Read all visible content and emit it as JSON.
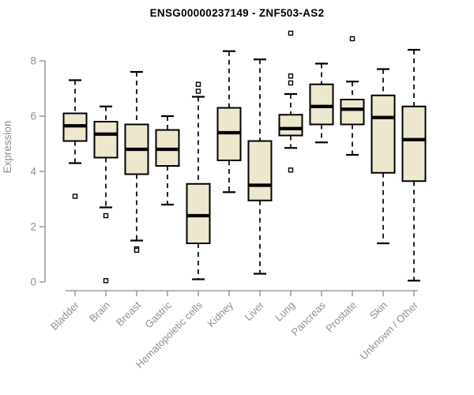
{
  "chart_data": {
    "type": "boxplot",
    "title": "ENSG00000237149 - ZNF503-AS2",
    "ylabel": "Expression",
    "xlabel": "",
    "ylim": [
      0,
      8
    ],
    "yticks": [
      0,
      2,
      4,
      6,
      8
    ],
    "grid": false,
    "legend": "none",
    "categories": [
      "Bladder",
      "Brain",
      "Breast",
      "Gastric",
      "Hematopoietic cells",
      "Kidney",
      "Liver",
      "Lung",
      "Pancreas",
      "Prostate",
      "Skin",
      "Unknown / Other"
    ],
    "boxes": [
      {
        "category": "Bladder",
        "whisker_low": 4.3,
        "q1": 5.1,
        "median": 5.65,
        "q3": 6.1,
        "whisker_high": 7.3,
        "outliers": [
          3.1
        ]
      },
      {
        "category": "Brain",
        "whisker_low": 2.7,
        "q1": 4.5,
        "median": 5.35,
        "q3": 5.8,
        "whisker_high": 6.35,
        "outliers": [
          2.4,
          0.05
        ]
      },
      {
        "category": "Breast",
        "whisker_low": 1.5,
        "q1": 3.9,
        "median": 4.8,
        "q3": 5.7,
        "whisker_high": 7.6,
        "outliers": [
          1.2,
          1.15
        ]
      },
      {
        "category": "Gastric",
        "whisker_low": 2.8,
        "q1": 4.2,
        "median": 4.8,
        "q3": 5.5,
        "whisker_high": 6.0,
        "outliers": []
      },
      {
        "category": "Hematopoietic cells",
        "whisker_low": 0.1,
        "q1": 1.4,
        "median": 2.4,
        "q3": 3.55,
        "whisker_high": 6.7,
        "outliers": [
          6.9,
          7.15
        ]
      },
      {
        "category": "Kidney",
        "whisker_low": 3.25,
        "q1": 4.4,
        "median": 5.4,
        "q3": 6.3,
        "whisker_high": 8.35,
        "outliers": []
      },
      {
        "category": "Liver",
        "whisker_low": 0.3,
        "q1": 2.95,
        "median": 3.5,
        "q3": 5.1,
        "whisker_high": 8.05,
        "outliers": []
      },
      {
        "category": "Lung",
        "whisker_low": 4.85,
        "q1": 5.3,
        "median": 5.55,
        "q3": 6.05,
        "whisker_high": 6.8,
        "outliers": [
          4.05,
          7.2,
          7.45,
          9.0
        ]
      },
      {
        "category": "Pancreas",
        "whisker_low": 5.05,
        "q1": 5.7,
        "median": 6.35,
        "q3": 7.15,
        "whisker_high": 7.9,
        "outliers": []
      },
      {
        "category": "Prostate",
        "whisker_low": 4.6,
        "q1": 5.7,
        "median": 6.25,
        "q3": 6.6,
        "whisker_high": 7.25,
        "outliers": [
          8.8
        ]
      },
      {
        "category": "Skin",
        "whisker_low": 1.4,
        "q1": 3.95,
        "median": 5.95,
        "q3": 6.75,
        "whisker_high": 7.7,
        "outliers": []
      },
      {
        "category": "Unknown / Other",
        "whisker_low": 0.05,
        "q1": 3.65,
        "median": 5.15,
        "q3": 6.35,
        "whisker_high": 8.4,
        "outliers": []
      }
    ],
    "colors": {
      "box_fill": "#EDE7CE",
      "box_stroke": "#000000",
      "axis": "#8a8a8a",
      "tick_label": "#909090",
      "title": "#000000",
      "background": "#ffffff"
    }
  }
}
